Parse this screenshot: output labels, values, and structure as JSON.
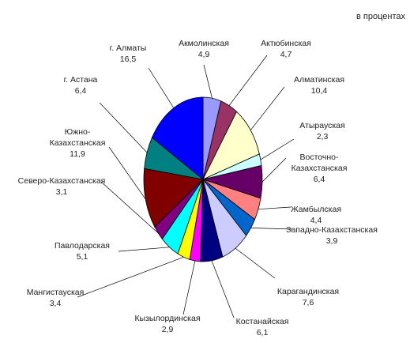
{
  "chart_data": {
    "type": "pie",
    "units_label": "в процентах",
    "slices": [
      {
        "label": "Акмолинская",
        "value": 4.9,
        "value_text": "4,9",
        "color": "#9999ff"
      },
      {
        "label": "Актюбинская",
        "value": 4.7,
        "value_text": "4,7",
        "color": "#993366"
      },
      {
        "label": "Алматинская",
        "value": 10.4,
        "value_text": "10,4",
        "color": "#ffffcc"
      },
      {
        "label": "Атырауская",
        "value": 2.3,
        "value_text": "2,3",
        "color": "#ccffff"
      },
      {
        "label": "Восточно-Казахстанская",
        "label_lines": [
          "Восточно-",
          "Казахстанская"
        ],
        "value": 6.4,
        "value_text": "6,4",
        "color": "#660066"
      },
      {
        "label": "Жамбылская",
        "value": 4.4,
        "value_text": "4,4",
        "color": "#ff8080"
      },
      {
        "label": "Западно-Казахстанская",
        "value": 3.9,
        "value_text": "3,9",
        "color": "#0066cc"
      },
      {
        "label": "Карагандинская",
        "value": 7.6,
        "value_text": "7,6",
        "color": "#ccccff"
      },
      {
        "label": "Костанайская",
        "value": 6.1,
        "value_text": "6,1",
        "color": "#000080"
      },
      {
        "label": "Кызылординская",
        "value": 2.9,
        "value_text": "2,9",
        "color": "#ff00ff"
      },
      {
        "label": "Мангистауская",
        "value": 3.4,
        "value_text": "3,4",
        "color": "#ffff00"
      },
      {
        "label": "Павлодарская",
        "value": 5.1,
        "value_text": "5,1",
        "color": "#00ffff"
      },
      {
        "label": "Северо-Казахстанская",
        "value": 3.1,
        "value_text": "3,1",
        "color": "#800080"
      },
      {
        "label": "Южно-Казахстанская",
        "label_lines": [
          "Южно-",
          "Казахстанская"
        ],
        "value": 11.9,
        "value_text": "11,9",
        "color": "#800000"
      },
      {
        "label": "г. Астана",
        "value": 6.4,
        "value_text": "6,4",
        "color": "#008080"
      },
      {
        "label": "г. Алматы",
        "value": 16.5,
        "value_text": "16,5",
        "color": "#0000ff"
      }
    ]
  }
}
